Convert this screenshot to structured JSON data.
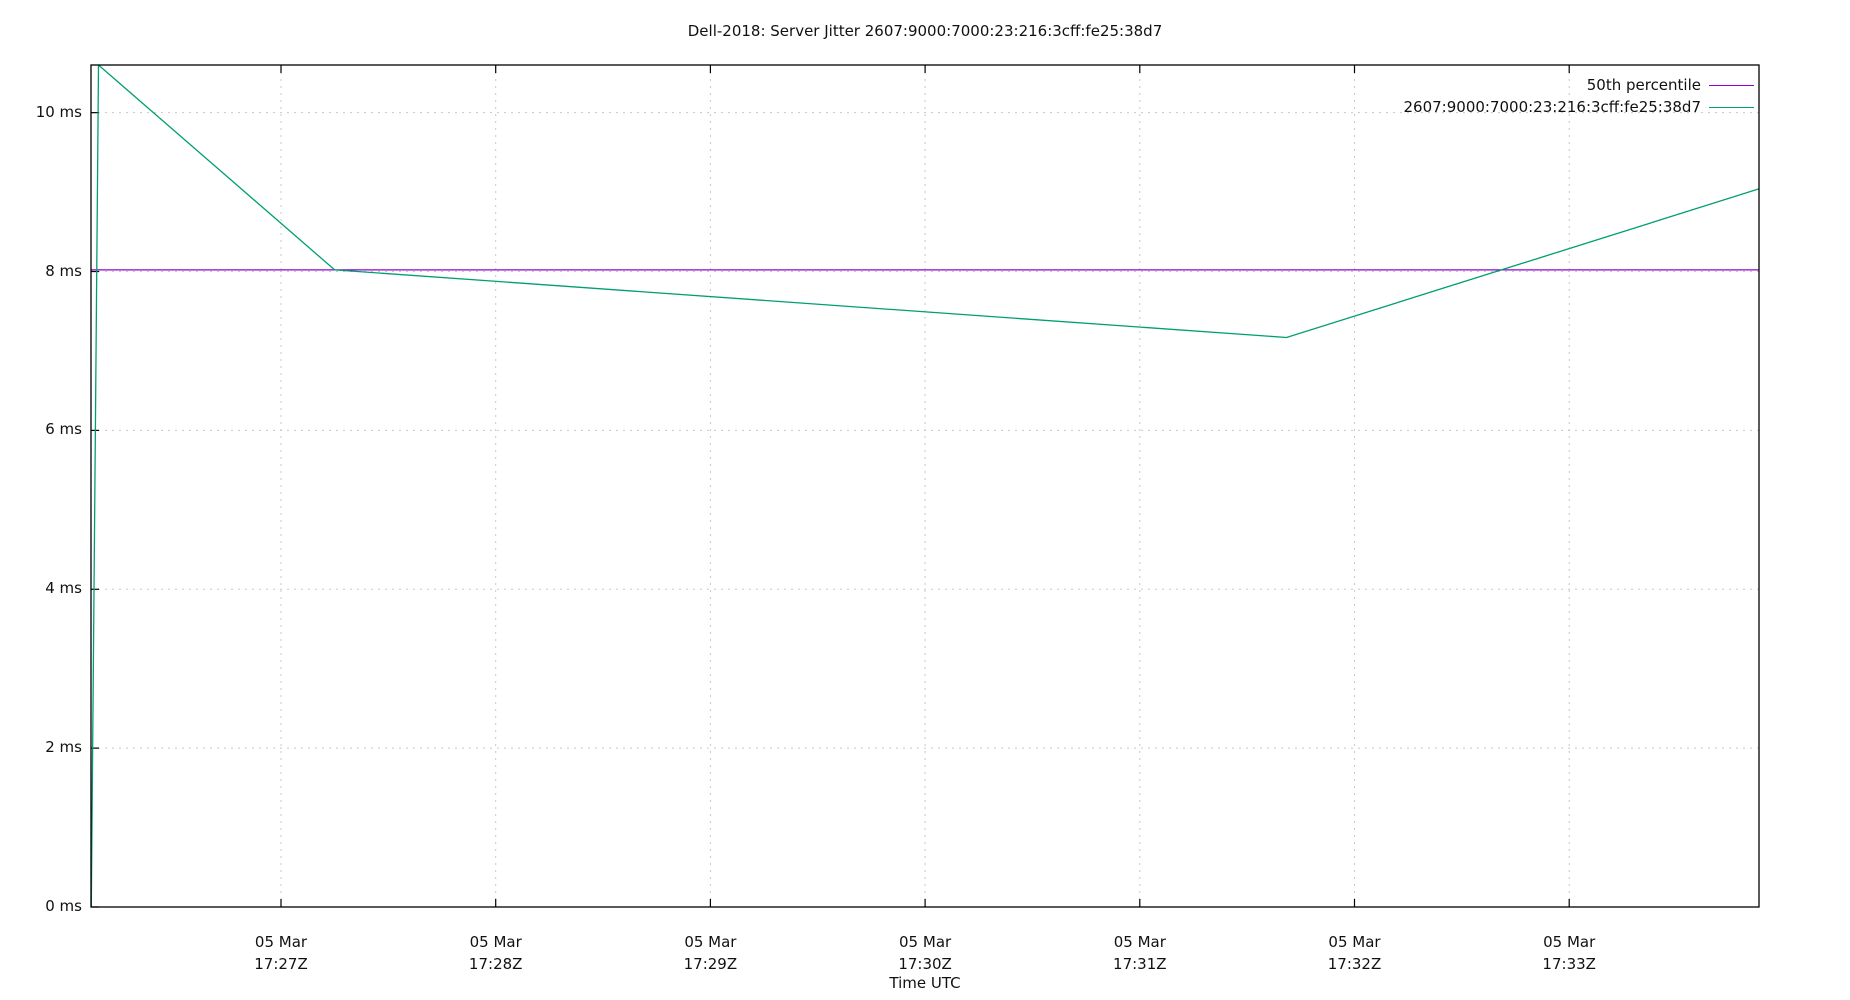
{
  "chart_data": {
    "type": "line",
    "title": "Dell-2018: Server Jitter 2607:9000:7000:23:216:3cff:fe25:38d7",
    "xlabel": "Time UTC",
    "ylabel": "",
    "ylim": [
      0,
      10.6
    ],
    "y_ticks": [
      "0 ms",
      "2 ms",
      "4 ms",
      "6 ms",
      "8 ms",
      "10 ms"
    ],
    "y_tick_values": [
      0,
      2,
      4,
      6,
      8,
      10
    ],
    "x_ticks": [
      {
        "date": "05 Mar",
        "time": "17:27Z"
      },
      {
        "date": "05 Mar",
        "time": "17:28Z"
      },
      {
        "date": "05 Mar",
        "time": "17:29Z"
      },
      {
        "date": "05 Mar",
        "time": "17:30Z"
      },
      {
        "date": "05 Mar",
        "time": "17:31Z"
      },
      {
        "date": "05 Mar",
        "time": "17:32Z"
      },
      {
        "date": "05 Mar",
        "time": "17:33Z"
      }
    ],
    "grid": true,
    "legend_position": "top-right",
    "series": [
      {
        "name": "50th percentile",
        "color": "#9400d3",
        "x": [
          "17:26:07",
          "17:33:53"
        ],
        "values": [
          8.02,
          8.02
        ]
      },
      {
        "name": "2607:9000:7000:23:216:3cff:fe25:38d7",
        "color": "#009e73",
        "x": [
          "17:26:07",
          "17:26:09",
          "17:27:15",
          "17:31:41",
          "17:33:53"
        ],
        "values": [
          0.0,
          10.6,
          8.02,
          7.17,
          9.04
        ]
      }
    ]
  }
}
